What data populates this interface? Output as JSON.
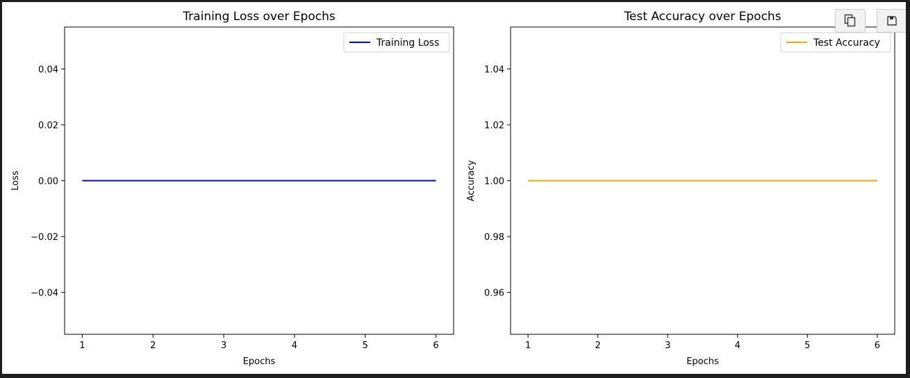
{
  "toolbar": {
    "buttons": [
      {
        "name": "copy-button",
        "icon": "copy-icon"
      },
      {
        "name": "save-button",
        "icon": "floppy-disk-icon"
      }
    ]
  },
  "chart_data": [
    {
      "type": "line",
      "title": "Training Loss over Epochs",
      "xlabel": "Epochs",
      "ylabel": "Loss",
      "xlim": [
        0.75,
        6.25
      ],
      "ylim": [
        -0.055,
        0.055
      ],
      "xticks": [
        1,
        2,
        3,
        4,
        5,
        6
      ],
      "yticks": [
        -0.04,
        -0.02,
        0.0,
        0.02,
        0.04
      ],
      "ytick_labels": [
        "−0.04",
        "−0.02",
        "0.00",
        "0.02",
        "0.04"
      ],
      "grid": false,
      "legend": "top-right",
      "series": [
        {
          "name": "Training Loss",
          "color": "#0000ff",
          "x": [
            1,
            2,
            3,
            4,
            5,
            6
          ],
          "y": [
            0,
            0,
            0,
            0,
            0,
            0
          ]
        }
      ]
    },
    {
      "type": "line",
      "title": "Test Accuracy over Epochs",
      "xlabel": "Epochs",
      "ylabel": "Accuracy",
      "xlim": [
        0.75,
        6.25
      ],
      "ylim": [
        0.945,
        1.055
      ],
      "xticks": [
        1,
        2,
        3,
        4,
        5,
        6
      ],
      "yticks": [
        0.96,
        0.98,
        1.0,
        1.02,
        1.04
      ],
      "ytick_labels": [
        "0.96",
        "0.98",
        "1.00",
        "1.02",
        "1.04"
      ],
      "grid": false,
      "legend": "top-right",
      "series": [
        {
          "name": "Test Accuracy",
          "color": "#ffa500",
          "x": [
            1,
            2,
            3,
            4,
            5,
            6
          ],
          "y": [
            1,
            1,
            1,
            1,
            1,
            1
          ]
        }
      ]
    }
  ]
}
